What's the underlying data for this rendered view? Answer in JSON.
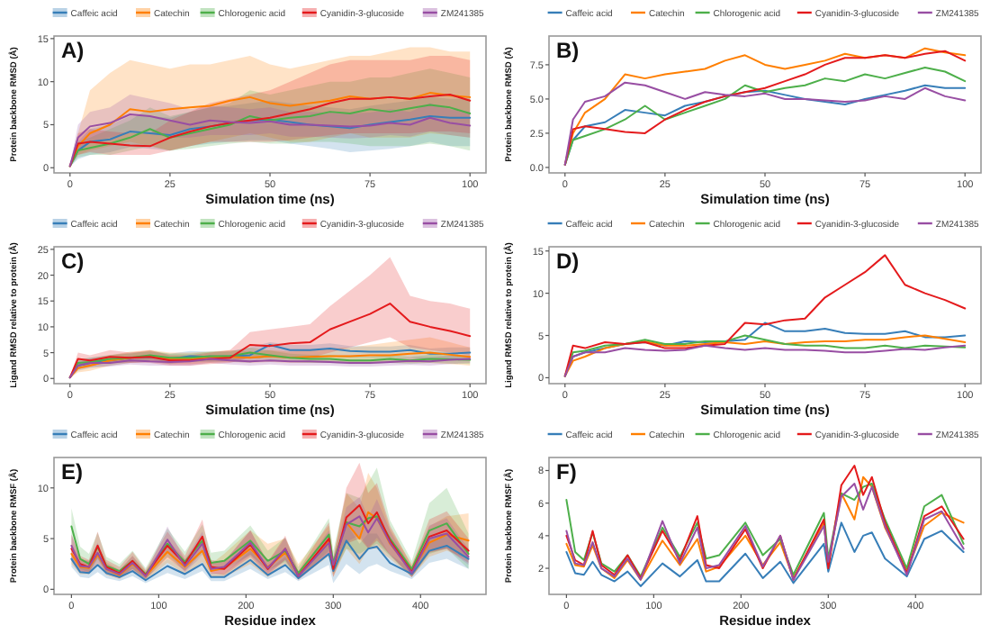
{
  "chart_data": [
    {
      "type": "line",
      "title": "A)",
      "xlabel": "Simulation time (ns)",
      "ylabel": "Protein backbone RMSD (Å)",
      "legend": "top",
      "xlim": [
        -4,
        104
      ],
      "ylim": [
        -0.6,
        15.3
      ],
      "xticks": [
        0,
        25,
        50,
        75,
        100
      ],
      "yticks": [
        0,
        5,
        10,
        15
      ],
      "x": [
        0,
        2,
        5,
        10,
        15,
        20,
        25,
        30,
        35,
        40,
        45,
        50,
        55,
        60,
        65,
        70,
        75,
        80,
        85,
        90,
        95,
        100
      ],
      "series": [
        {
          "name": "Caffeic acid",
          "color": "#377eb8",
          "values": [
            0.2,
            2.0,
            3.0,
            3.3,
            4.2,
            4.0,
            3.8,
            4.5,
            4.8,
            5.2,
            5.5,
            5.6,
            5.3,
            5.0,
            4.8,
            4.6,
            5.0,
            5.3,
            5.6,
            6.0,
            5.8,
            5.8
          ],
          "lower": [
            0.1,
            1.0,
            1.5,
            1.8,
            2.4,
            2.2,
            2.0,
            2.5,
            2.8,
            3.0,
            3.2,
            3.2,
            2.8,
            2.5,
            2.2,
            1.8,
            2.0,
            2.2,
            2.5,
            3.0,
            2.5,
            2.5
          ],
          "upper": [
            0.3,
            3.0,
            4.5,
            5.0,
            6.0,
            6.0,
            5.8,
            6.5,
            7.0,
            7.2,
            7.5,
            7.8,
            7.5,
            7.2,
            7.0,
            6.8,
            7.2,
            7.5,
            7.8,
            8.2,
            8.0,
            8.0
          ]
        },
        {
          "name": "Catechin",
          "color": "#ff7f00",
          "values": [
            0.2,
            2.5,
            4.0,
            5.0,
            6.8,
            6.5,
            6.8,
            7.0,
            7.2,
            7.8,
            8.2,
            7.5,
            7.2,
            7.5,
            7.8,
            8.3,
            8.0,
            8.2,
            8.0,
            8.7,
            8.4,
            8.2
          ],
          "lower": [
            0.1,
            1.5,
            2.0,
            2.5,
            3.0,
            2.5,
            2.0,
            2.5,
            3.0,
            3.5,
            4.0,
            3.5,
            3.0,
            3.0,
            3.5,
            4.0,
            3.5,
            3.5,
            3.5,
            4.0,
            3.8,
            3.5
          ],
          "upper": [
            0.3,
            4.0,
            9.0,
            11.0,
            12.5,
            12.0,
            11.5,
            12.0,
            12.0,
            12.5,
            13.0,
            12.0,
            11.5,
            12.0,
            12.5,
            13.0,
            13.0,
            13.5,
            14.0,
            14.0,
            13.5,
            13.5
          ]
        },
        {
          "name": "Chlorogenic acid",
          "color": "#4daf4a",
          "values": [
            0.2,
            2.0,
            2.3,
            2.8,
            3.5,
            4.5,
            3.5,
            4.0,
            4.5,
            5.0,
            6.0,
            5.5,
            5.8,
            6.0,
            6.5,
            6.3,
            6.8,
            6.5,
            6.9,
            7.3,
            7.0,
            6.3
          ],
          "lower": [
            0.1,
            1.2,
            1.5,
            1.5,
            2.0,
            2.5,
            2.0,
            2.2,
            2.5,
            2.8,
            3.0,
            2.8,
            2.8,
            3.0,
            3.0,
            2.8,
            2.5,
            2.5,
            2.5,
            2.8,
            2.5,
            2.0
          ],
          "upper": [
            0.3,
            3.0,
            3.5,
            4.5,
            5.5,
            7.0,
            6.0,
            6.5,
            7.0,
            7.5,
            9.0,
            8.5,
            9.0,
            9.5,
            10.0,
            10.0,
            10.5,
            10.5,
            11.0,
            11.5,
            11.0,
            10.5
          ]
        },
        {
          "name": "Cyanidin-3-glucoside",
          "color": "#e41a1c",
          "values": [
            0.2,
            2.8,
            3.0,
            2.8,
            2.6,
            2.5,
            3.5,
            4.2,
            4.8,
            5.2,
            5.5,
            5.8,
            6.3,
            6.8,
            7.5,
            8.0,
            8.0,
            8.2,
            8.0,
            8.3,
            8.5,
            7.8
          ],
          "lower": [
            0.1,
            1.5,
            1.8,
            1.5,
            1.5,
            1.5,
            2.0,
            2.5,
            3.0,
            3.0,
            3.0,
            3.0,
            3.2,
            3.5,
            3.8,
            4.0,
            4.0,
            4.0,
            4.0,
            4.2,
            4.2,
            4.0
          ],
          "upper": [
            0.3,
            4.0,
            4.5,
            4.2,
            4.0,
            4.0,
            5.5,
            6.5,
            7.5,
            8.0,
            8.5,
            9.0,
            10.0,
            11.0,
            12.0,
            12.5,
            12.5,
            12.5,
            12.5,
            13.0,
            13.0,
            12.5
          ]
        },
        {
          "name": "ZM241385",
          "color": "#984ea3",
          "values": [
            0.2,
            3.5,
            4.8,
            5.2,
            6.2,
            6.0,
            5.5,
            5.0,
            5.5,
            5.3,
            5.2,
            5.4,
            5.0,
            5.0,
            4.9,
            4.8,
            4.9,
            5.2,
            5.0,
            5.8,
            5.2,
            4.9
          ],
          "lower": [
            0.1,
            2.0,
            3.0,
            3.5,
            4.0,
            4.0,
            3.5,
            3.5,
            3.8,
            3.8,
            3.8,
            4.0,
            3.6,
            3.6,
            3.5,
            3.4,
            3.5,
            3.8,
            3.6,
            4.2,
            3.8,
            3.5
          ],
          "upper": [
            0.3,
            5.0,
            6.5,
            7.0,
            8.5,
            8.0,
            7.5,
            6.8,
            7.2,
            7.0,
            6.8,
            7.0,
            6.5,
            6.5,
            6.4,
            6.3,
            6.4,
            6.8,
            6.5,
            7.5,
            6.8,
            6.5
          ]
        }
      ]
    },
    {
      "type": "line",
      "title": "B)",
      "xlabel": "Simulation time (ns)",
      "ylabel": "Protein backbone RMSD (Å)",
      "legend": "top",
      "xlim": [
        -4,
        104
      ],
      "ylim": [
        -0.4,
        9.6
      ],
      "xticks": [
        0,
        25,
        50,
        75,
        100
      ],
      "yticks": [
        {
          "value": 0,
          "label": "0.0"
        },
        {
          "value": 2.5,
          "label": "2.5"
        },
        {
          "value": 5,
          "label": "5.0"
        },
        {
          "value": 7.5,
          "label": "7.5"
        }
      ],
      "x": [
        0,
        2,
        5,
        10,
        15,
        20,
        25,
        30,
        35,
        40,
        45,
        50,
        55,
        60,
        65,
        70,
        75,
        80,
        85,
        90,
        95,
        100
      ],
      "series": [
        {
          "name": "Caffeic acid",
          "color": "#377eb8",
          "values": [
            0.2,
            2.0,
            3.0,
            3.3,
            4.2,
            4.0,
            3.8,
            4.5,
            4.8,
            5.2,
            5.5,
            5.6,
            5.3,
            5.0,
            4.8,
            4.6,
            5.0,
            5.3,
            5.6,
            6.0,
            5.8,
            5.8
          ]
        },
        {
          "name": "Catechin",
          "color": "#ff7f00",
          "values": [
            0.2,
            2.5,
            4.0,
            5.0,
            6.8,
            6.5,
            6.8,
            7.0,
            7.2,
            7.8,
            8.2,
            7.5,
            7.2,
            7.5,
            7.8,
            8.3,
            8.0,
            8.2,
            8.0,
            8.7,
            8.4,
            8.2
          ]
        },
        {
          "name": "Chlorogenic acid",
          "color": "#4daf4a",
          "values": [
            0.2,
            2.0,
            2.3,
            2.8,
            3.5,
            4.5,
            3.5,
            4.0,
            4.5,
            5.0,
            6.0,
            5.5,
            5.8,
            6.0,
            6.5,
            6.3,
            6.8,
            6.5,
            6.9,
            7.3,
            7.0,
            6.3
          ]
        },
        {
          "name": "Cyanidin-3-glucoside",
          "color": "#e41a1c",
          "values": [
            0.2,
            2.8,
            3.0,
            2.8,
            2.6,
            2.5,
            3.5,
            4.2,
            4.8,
            5.2,
            5.5,
            5.8,
            6.3,
            6.8,
            7.5,
            8.0,
            8.0,
            8.2,
            8.0,
            8.3,
            8.5,
            7.8
          ]
        },
        {
          "name": "ZM241385",
          "color": "#984ea3",
          "values": [
            0.2,
            3.5,
            4.8,
            5.2,
            6.2,
            6.0,
            5.5,
            5.0,
            5.5,
            5.3,
            5.2,
            5.4,
            5.0,
            5.0,
            4.9,
            4.8,
            4.9,
            5.2,
            5.0,
            5.8,
            5.2,
            4.9
          ]
        }
      ]
    },
    {
      "type": "line",
      "title": "C)",
      "xlabel": "Simulation time (ns)",
      "ylabel": "Ligand RMSD relative to protein (Å)",
      "legend": "top",
      "xlim": [
        -4,
        104
      ],
      "ylim": [
        -1,
        25.5
      ],
      "xticks": [
        0,
        25,
        50,
        75,
        100
      ],
      "yticks": [
        0,
        5,
        10,
        15,
        20,
        25
      ],
      "x": [
        0,
        2,
        5,
        10,
        15,
        20,
        25,
        30,
        35,
        40,
        45,
        50,
        55,
        60,
        65,
        70,
        75,
        80,
        85,
        90,
        95,
        100
      ],
      "series": [
        {
          "name": "Caffeic acid",
          "color": "#377eb8",
          "values": [
            0.2,
            2.5,
            3.0,
            3.5,
            4.0,
            4.2,
            3.8,
            4.3,
            4.2,
            4.3,
            4.5,
            6.5,
            5.5,
            5.5,
            5.8,
            5.3,
            5.2,
            5.2,
            5.5,
            4.8,
            4.8,
            5.0
          ],
          "lower": [
            0.1,
            1.5,
            2.0,
            2.5,
            3.0,
            3.2,
            2.8,
            3.3,
            3.2,
            3.3,
            3.0,
            4.5,
            4.0,
            4.0,
            4.3,
            4.0,
            4.0,
            4.0,
            4.2,
            3.5,
            3.5,
            3.8
          ],
          "upper": [
            0.3,
            3.5,
            4.0,
            4.5,
            5.0,
            5.2,
            4.8,
            5.3,
            5.2,
            5.3,
            6.0,
            7.0,
            6.5,
            6.5,
            6.8,
            6.3,
            6.2,
            6.2,
            6.5,
            5.8,
            6.0,
            6.0
          ]
        },
        {
          "name": "Catechin",
          "color": "#ff7f00",
          "values": [
            0.2,
            2.0,
            2.5,
            3.5,
            4.0,
            4.3,
            3.8,
            3.8,
            4.0,
            4.2,
            4.0,
            4.3,
            4.0,
            4.2,
            4.3,
            4.3,
            4.5,
            4.5,
            4.8,
            5.0,
            4.6,
            4.2
          ],
          "lower": [
            0.1,
            1.2,
            1.5,
            2.5,
            3.0,
            3.3,
            2.8,
            2.8,
            3.0,
            3.2,
            3.0,
            3.2,
            3.0,
            3.0,
            3.0,
            3.0,
            3.0,
            3.0,
            3.0,
            3.0,
            2.8,
            2.5
          ],
          "upper": [
            0.3,
            3.0,
            3.5,
            4.5,
            5.2,
            5.5,
            5.0,
            5.0,
            5.2,
            5.5,
            5.2,
            5.5,
            5.2,
            5.5,
            5.8,
            6.0,
            6.5,
            7.0,
            7.5,
            8.0,
            7.0,
            6.0
          ]
        },
        {
          "name": "Chlorogenic acid",
          "color": "#4daf4a",
          "values": [
            0.2,
            3.0,
            3.2,
            3.8,
            4.0,
            4.5,
            4.0,
            4.0,
            4.3,
            4.3,
            5.0,
            4.5,
            4.0,
            3.8,
            3.8,
            3.5,
            3.5,
            3.8,
            3.5,
            3.8,
            3.7,
            3.6
          ],
          "lower": [
            0.1,
            2.2,
            2.5,
            3.0,
            3.2,
            3.6,
            3.2,
            3.2,
            3.4,
            3.4,
            4.0,
            3.6,
            3.2,
            3.0,
            3.0,
            2.8,
            2.8,
            3.0,
            2.8,
            3.0,
            2.9,
            2.8
          ],
          "upper": [
            0.3,
            3.8,
            4.0,
            4.6,
            4.8,
            5.4,
            4.8,
            4.8,
            5.2,
            5.2,
            6.0,
            5.4,
            4.8,
            4.6,
            4.6,
            4.2,
            4.2,
            4.6,
            4.2,
            4.6,
            4.5,
            4.4
          ]
        },
        {
          "name": "Cyanidin-3-glucoside",
          "color": "#e41a1c",
          "values": [
            0.2,
            3.8,
            3.5,
            4.2,
            4.0,
            4.2,
            3.5,
            3.5,
            3.8,
            4.0,
            6.5,
            6.3,
            6.8,
            7.0,
            9.5,
            11.0,
            12.5,
            14.5,
            11.0,
            10.0,
            9.2,
            8.2
          ],
          "lower": [
            0.1,
            2.5,
            2.5,
            3.0,
            3.0,
            3.0,
            2.5,
            2.5,
            2.8,
            3.0,
            4.0,
            4.0,
            4.0,
            4.0,
            5.0,
            6.0,
            7.0,
            8.0,
            6.0,
            5.5,
            5.0,
            4.5
          ],
          "upper": [
            0.3,
            5.0,
            4.5,
            5.5,
            5.0,
            5.5,
            4.5,
            4.5,
            5.0,
            5.5,
            9.0,
            9.5,
            10.0,
            10.5,
            14.0,
            17.0,
            20.0,
            23.5,
            16.0,
            15.0,
            14.5,
            13.5
          ]
        },
        {
          "name": "ZM241385",
          "color": "#984ea3",
          "values": [
            0.2,
            2.5,
            3.0,
            3.0,
            3.5,
            3.3,
            3.2,
            3.3,
            3.8,
            3.5,
            3.3,
            3.5,
            3.3,
            3.3,
            3.2,
            3.0,
            3.0,
            3.2,
            3.4,
            3.3,
            3.6,
            3.8
          ],
          "lower": [
            0.1,
            1.8,
            2.2,
            2.3,
            2.7,
            2.5,
            2.5,
            2.5,
            3.0,
            2.7,
            2.5,
            2.7,
            2.5,
            2.5,
            2.5,
            2.3,
            2.3,
            2.5,
            2.6,
            2.5,
            2.8,
            3.0
          ],
          "upper": [
            0.3,
            3.2,
            3.8,
            3.7,
            4.3,
            4.1,
            3.9,
            4.1,
            4.6,
            4.3,
            4.1,
            4.3,
            4.1,
            4.1,
            3.9,
            3.7,
            3.7,
            3.9,
            4.2,
            4.1,
            4.4,
            4.6
          ]
        }
      ]
    },
    {
      "type": "line",
      "title": "D)",
      "xlabel": "Simulation time (ns)",
      "ylabel": "Ligand RMSD relative to protein (Å)",
      "legend": "top",
      "xlim": [
        -4,
        104
      ],
      "ylim": [
        -0.7,
        15.5
      ],
      "xticks": [
        0,
        25,
        50,
        75,
        100
      ],
      "yticks": [
        0,
        5,
        10,
        15
      ],
      "x": [
        0,
        2,
        5,
        10,
        15,
        20,
        25,
        30,
        35,
        40,
        45,
        50,
        55,
        60,
        65,
        70,
        75,
        80,
        85,
        90,
        95,
        100
      ],
      "series": [
        {
          "name": "Caffeic acid",
          "color": "#377eb8",
          "values": [
            0.2,
            2.5,
            3.0,
            3.5,
            4.0,
            4.2,
            3.8,
            4.3,
            4.2,
            4.3,
            4.5,
            6.5,
            5.5,
            5.5,
            5.8,
            5.3,
            5.2,
            5.2,
            5.5,
            4.8,
            4.8,
            5.0
          ]
        },
        {
          "name": "Catechin",
          "color": "#ff7f00",
          "values": [
            0.2,
            2.0,
            2.5,
            3.5,
            4.0,
            4.3,
            3.8,
            3.8,
            4.0,
            4.2,
            4.0,
            4.3,
            4.0,
            4.2,
            4.3,
            4.3,
            4.5,
            4.5,
            4.8,
            5.0,
            4.6,
            4.2
          ]
        },
        {
          "name": "Chlorogenic acid",
          "color": "#4daf4a",
          "values": [
            0.2,
            3.0,
            3.2,
            3.8,
            4.0,
            4.5,
            4.0,
            4.0,
            4.3,
            4.3,
            5.0,
            4.5,
            4.0,
            3.8,
            3.8,
            3.5,
            3.5,
            3.8,
            3.5,
            3.8,
            3.7,
            3.6
          ]
        },
        {
          "name": "Cyanidin-3-glucoside",
          "color": "#e41a1c",
          "values": [
            0.2,
            3.8,
            3.5,
            4.2,
            4.0,
            4.2,
            3.5,
            3.5,
            3.8,
            4.0,
            6.5,
            6.3,
            6.8,
            7.0,
            9.5,
            11.0,
            12.5,
            14.5,
            11.0,
            10.0,
            9.2,
            8.2
          ]
        },
        {
          "name": "ZM241385",
          "color": "#984ea3",
          "values": [
            0.2,
            2.5,
            3.0,
            3.0,
            3.5,
            3.3,
            3.2,
            3.3,
            3.8,
            3.5,
            3.3,
            3.5,
            3.3,
            3.3,
            3.2,
            3.0,
            3.0,
            3.2,
            3.4,
            3.3,
            3.6,
            3.8
          ]
        }
      ]
    },
    {
      "type": "line",
      "title": "E)",
      "xlabel": "Residue index",
      "ylabel": "Protein backbone RMSF (Å)",
      "legend": "top",
      "xlim": [
        -20,
        475
      ],
      "ylim": [
        -0.5,
        13
      ],
      "xticks": [
        0,
        100,
        200,
        300,
        400
      ],
      "yticks": [
        0,
        5,
        10
      ],
      "x": [
        0,
        10,
        20,
        30,
        40,
        55,
        70,
        85,
        110,
        130,
        150,
        160,
        175,
        205,
        225,
        245,
        260,
        295,
        300,
        315,
        330,
        340,
        350,
        365,
        390,
        410,
        430,
        455
      ],
      "series": [
        {
          "name": "Caffeic acid",
          "color": "#377eb8",
          "values": [
            3.0,
            1.7,
            1.6,
            2.4,
            1.6,
            1.2,
            1.8,
            0.9,
            2.3,
            1.5,
            2.5,
            1.2,
            1.2,
            2.9,
            1.4,
            2.4,
            1.1,
            3.5,
            1.8,
            4.8,
            3.0,
            4.0,
            4.2,
            2.6,
            1.5,
            3.8,
            4.3,
            3.0
          ],
          "lower": [
            2.2,
            1.2,
            1.1,
            1.7,
            1.1,
            0.8,
            1.3,
            0.6,
            1.6,
            1.0,
            1.8,
            0.8,
            0.8,
            2.0,
            1.0,
            1.7,
            0.8,
            2.4,
            0.6,
            2.5,
            1.5,
            2.2,
            2.5,
            1.8,
            1.0,
            2.6,
            3.0,
            2.0
          ],
          "upper": [
            3.8,
            2.2,
            2.1,
            3.2,
            2.1,
            1.6,
            2.4,
            1.2,
            3.0,
            2.0,
            3.3,
            1.6,
            1.6,
            3.8,
            1.9,
            3.2,
            1.5,
            4.6,
            2.8,
            6.5,
            4.5,
            5.5,
            5.5,
            3.4,
            2.0,
            5.0,
            5.6,
            4.0
          ]
        },
        {
          "name": "Catechin",
          "color": "#ff7f00",
          "values": [
            3.5,
            2.2,
            2.1,
            3.4,
            2.0,
            1.4,
            2.5,
            1.3,
            3.7,
            2.2,
            3.8,
            1.8,
            2.1,
            4.0,
            2.2,
            3.6,
            1.4,
            4.8,
            2.2,
            6.6,
            5.0,
            7.6,
            7.0,
            4.5,
            1.8,
            4.6,
            5.4,
            4.8
          ],
          "lower": [
            2.5,
            1.5,
            1.5,
            2.4,
            1.4,
            1.0,
            1.8,
            0.9,
            2.6,
            1.5,
            2.7,
            1.2,
            1.2,
            2.5,
            1.2,
            2.5,
            1.0,
            3.3,
            1.2,
            4.0,
            2.5,
            4.0,
            4.0,
            3.0,
            1.2,
            3.2,
            3.8,
            3.0
          ],
          "upper": [
            4.5,
            3.0,
            2.8,
            4.5,
            2.7,
            1.9,
            3.3,
            1.8,
            4.9,
            3.0,
            5.0,
            2.5,
            3.5,
            5.8,
            4.5,
            5.0,
            2.5,
            6.3,
            3.2,
            9.5,
            8.0,
            11.5,
            10.0,
            6.0,
            2.5,
            6.2,
            7.2,
            7.5
          ]
        },
        {
          "name": "Chlorogenic acid",
          "color": "#4daf4a",
          "values": [
            6.2,
            3.0,
            2.5,
            4.2,
            2.3,
            1.8,
            2.8,
            1.5,
            4.5,
            2.7,
            4.8,
            2.6,
            2.8,
            4.8,
            2.8,
            3.8,
            1.6,
            5.4,
            2.6,
            6.6,
            6.2,
            7.0,
            7.2,
            5.0,
            2.0,
            5.8,
            6.5,
            3.5
          ],
          "lower": [
            4.5,
            2.0,
            1.7,
            3.0,
            1.6,
            1.2,
            2.0,
            1.0,
            3.2,
            1.9,
            3.4,
            1.8,
            1.9,
            3.4,
            1.9,
            2.7,
            1.1,
            3.8,
            1.5,
            4.0,
            3.5,
            4.0,
            4.5,
            3.3,
            1.2,
            3.5,
            4.0,
            2.0
          ],
          "upper": [
            8.0,
            4.2,
            3.5,
            5.6,
            3.2,
            2.5,
            3.8,
            2.1,
            6.0,
            3.7,
            6.4,
            3.6,
            3.8,
            6.3,
            3.8,
            5.1,
            2.2,
            7.0,
            3.8,
            9.5,
            9.0,
            10.5,
            12.0,
            6.8,
            2.8,
            8.5,
            10.0,
            5.5
          ]
        },
        {
          "name": "Cyanidin-3-glucoside",
          "color": "#e41a1c",
          "values": [
            4.0,
            2.5,
            2.2,
            4.3,
            2.2,
            1.6,
            2.8,
            1.4,
            4.3,
            2.5,
            5.2,
            2.2,
            2.0,
            4.4,
            2.0,
            4.0,
            1.3,
            5.0,
            2.0,
            7.1,
            8.3,
            6.5,
            7.6,
            4.8,
            1.7,
            5.2,
            5.8,
            3.8
          ],
          "lower": [
            2.8,
            1.8,
            1.6,
            3.1,
            1.6,
            1.1,
            2.0,
            1.0,
            3.1,
            1.8,
            3.7,
            1.6,
            1.4,
            3.2,
            1.4,
            2.9,
            0.9,
            3.5,
            1.2,
            4.5,
            5.0,
            4.0,
            4.8,
            3.4,
            1.2,
            3.6,
            4.0,
            2.6
          ],
          "upper": [
            5.4,
            3.3,
            2.9,
            5.7,
            2.9,
            2.2,
            3.7,
            1.9,
            5.7,
            3.3,
            6.9,
            2.9,
            2.7,
            5.8,
            2.7,
            5.3,
            1.8,
            6.6,
            3.0,
            10.0,
            12.5,
            9.5,
            10.5,
            6.3,
            2.3,
            6.9,
            7.7,
            5.0
          ]
        },
        {
          "name": "ZM241385",
          "color": "#984ea3",
          "values": [
            4.3,
            2.3,
            2.2,
            3.6,
            2.0,
            1.5,
            2.6,
            1.3,
            4.9,
            2.3,
            4.5,
            2.0,
            2.2,
            4.6,
            2.1,
            4.0,
            1.3,
            4.6,
            2.4,
            6.4,
            7.2,
            5.6,
            7.0,
            4.6,
            1.6,
            5.0,
            5.5,
            3.2
          ],
          "lower": [
            3.2,
            1.7,
            1.6,
            2.6,
            1.5,
            1.1,
            1.9,
            1.0,
            3.6,
            1.7,
            3.3,
            1.5,
            1.6,
            3.4,
            1.6,
            2.9,
            1.0,
            3.4,
            1.8,
            4.7,
            5.3,
            4.1,
            5.1,
            3.4,
            1.2,
            3.7,
            4.0,
            2.4
          ],
          "upper": [
            5.4,
            2.9,
            2.8,
            4.6,
            2.5,
            1.9,
            3.3,
            1.6,
            6.2,
            2.9,
            5.7,
            2.5,
            2.8,
            5.8,
            2.6,
            5.1,
            1.6,
            5.8,
            3.0,
            8.1,
            9.1,
            7.1,
            8.9,
            5.8,
            2.0,
            6.3,
            7.0,
            4.0
          ]
        }
      ]
    },
    {
      "type": "line",
      "title": "F)",
      "xlabel": "Residue index",
      "ylabel": "Protein backbone RMSF (Å)",
      "legend": "top",
      "xlim": [
        -20,
        475
      ],
      "ylim": [
        0.4,
        8.8
      ],
      "xticks": [
        0,
        100,
        200,
        300,
        400
      ],
      "yticks": [
        2,
        4,
        6,
        8
      ],
      "x": [
        0,
        10,
        20,
        30,
        40,
        55,
        70,
        85,
        110,
        130,
        150,
        160,
        175,
        205,
        225,
        245,
        260,
        295,
        300,
        315,
        330,
        340,
        350,
        365,
        390,
        410,
        430,
        455
      ],
      "series": [
        {
          "name": "Caffeic acid",
          "color": "#377eb8",
          "values": [
            3.0,
            1.7,
            1.6,
            2.4,
            1.6,
            1.2,
            1.8,
            0.9,
            2.3,
            1.5,
            2.5,
            1.2,
            1.2,
            2.9,
            1.4,
            2.4,
            1.1,
            3.5,
            1.8,
            4.8,
            3.0,
            4.0,
            4.2,
            2.6,
            1.5,
            3.8,
            4.3,
            3.0
          ]
        },
        {
          "name": "Catechin",
          "color": "#ff7f00",
          "values": [
            3.5,
            2.2,
            2.1,
            3.4,
            2.0,
            1.4,
            2.5,
            1.3,
            3.7,
            2.2,
            3.8,
            1.8,
            2.1,
            4.0,
            2.2,
            3.6,
            1.4,
            4.8,
            2.2,
            6.6,
            5.0,
            7.6,
            7.0,
            4.5,
            1.8,
            4.6,
            5.4,
            4.8
          ]
        },
        {
          "name": "Chlorogenic acid",
          "color": "#4daf4a",
          "values": [
            6.2,
            3.0,
            2.5,
            4.2,
            2.3,
            1.8,
            2.8,
            1.5,
            4.5,
            2.7,
            4.8,
            2.6,
            2.8,
            4.8,
            2.8,
            3.8,
            1.6,
            5.4,
            2.6,
            6.6,
            6.2,
            7.0,
            7.2,
            5.0,
            2.0,
            5.8,
            6.5,
            3.5
          ]
        },
        {
          "name": "Cyanidin-3-glucoside",
          "color": "#e41a1c",
          "values": [
            4.0,
            2.5,
            2.2,
            4.3,
            2.2,
            1.6,
            2.8,
            1.4,
            4.3,
            2.5,
            5.2,
            2.2,
            2.0,
            4.4,
            2.0,
            4.0,
            1.3,
            5.0,
            2.0,
            7.1,
            8.3,
            6.5,
            7.6,
            4.8,
            1.7,
            5.2,
            5.8,
            3.8
          ]
        },
        {
          "name": "ZM241385",
          "color": "#984ea3",
          "values": [
            4.3,
            2.3,
            2.2,
            3.6,
            2.0,
            1.5,
            2.6,
            1.3,
            4.9,
            2.3,
            4.5,
            2.0,
            2.2,
            4.6,
            2.1,
            4.0,
            1.3,
            4.6,
            2.4,
            6.4,
            7.2,
            5.6,
            7.0,
            4.6,
            1.6,
            5.0,
            5.5,
            3.2
          ]
        }
      ]
    }
  ]
}
